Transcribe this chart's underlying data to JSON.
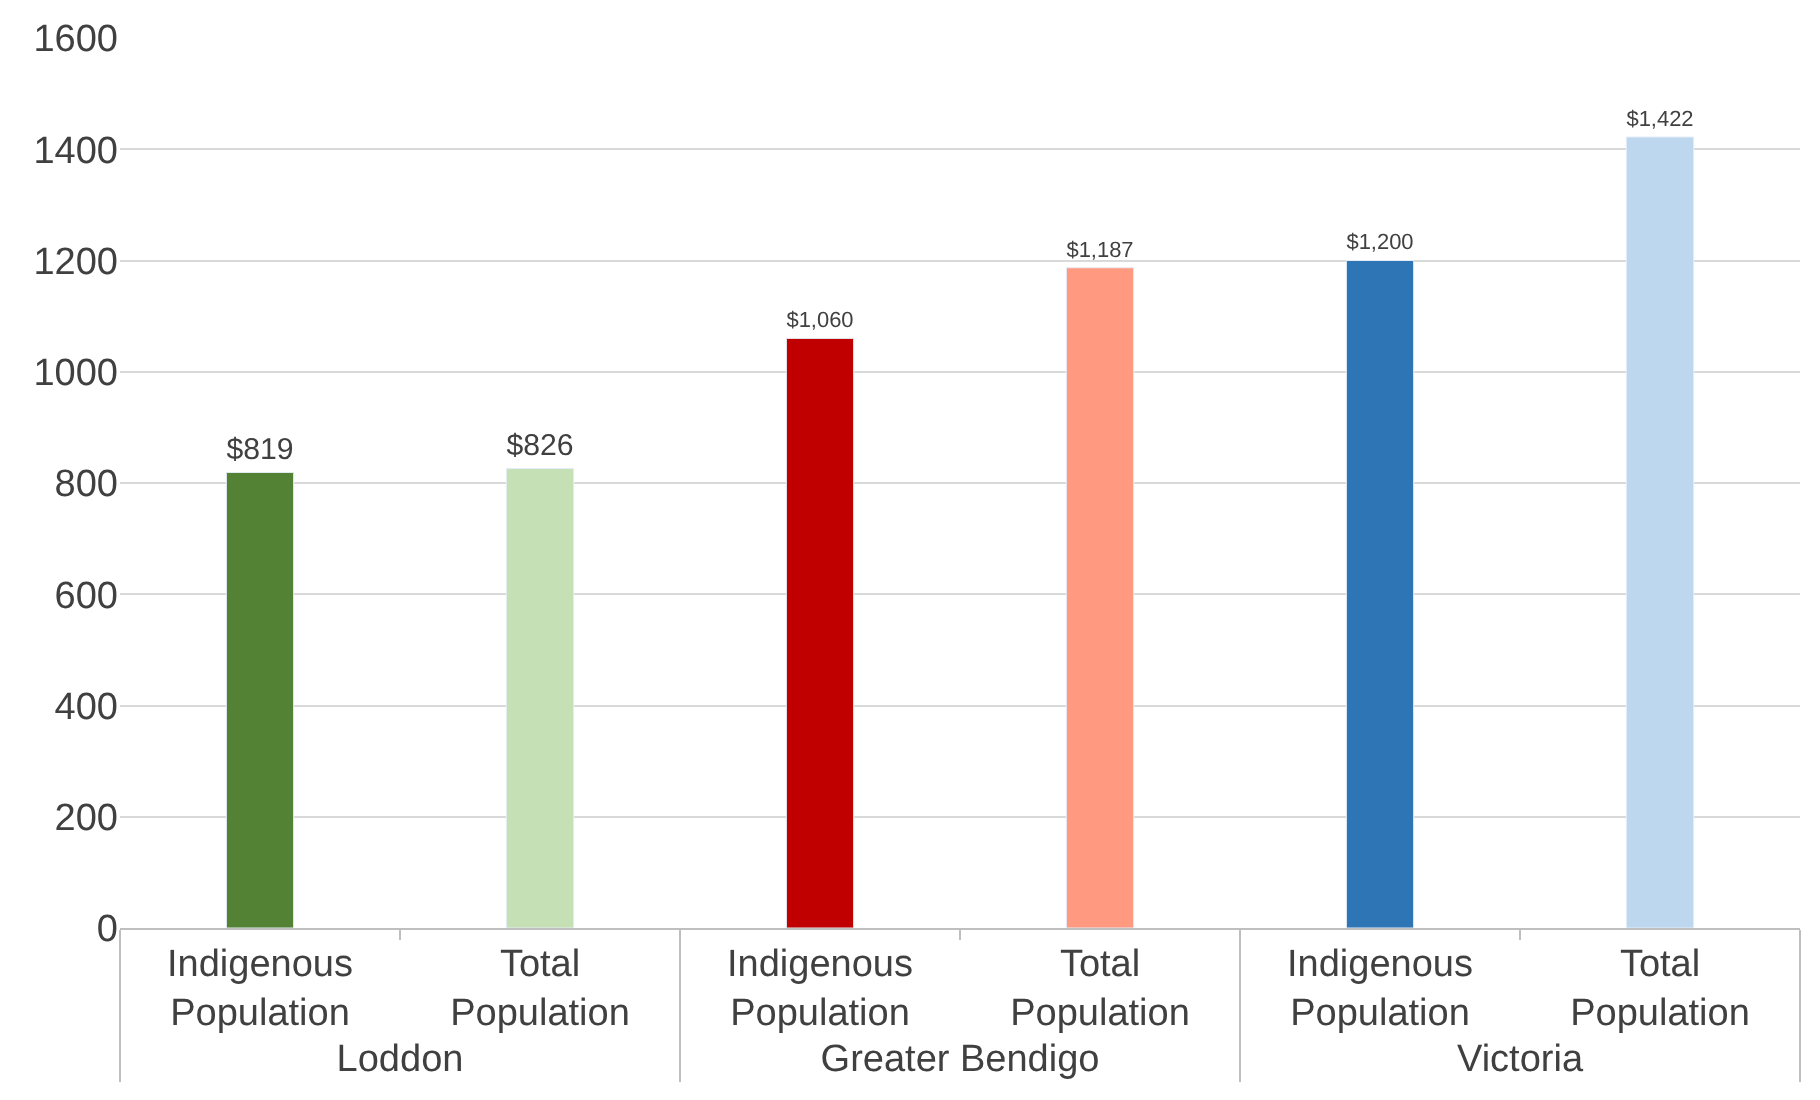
{
  "chart_data": {
    "type": "bar",
    "categories": [
      "Indigenous Population",
      "Total Population",
      "Indigenous Population",
      "Total Population",
      "Indigenous Population",
      "Total Population"
    ],
    "values": [
      819,
      826,
      1060,
      1187,
      1200,
      1422
    ],
    "colors": [
      "#548235",
      "#c5e0b4",
      "#c00000",
      "#ff9980",
      "#2e75b6",
      "#bdd7ee"
    ],
    "value_labels": [
      "$819",
      "$826",
      "$1,060",
      "$1,187",
      "$1,200",
      "$1,422"
    ],
    "annotations": [
      "Loddon",
      "Greater Bendigo",
      "Victoria"
    ],
    "ylim": [
      0,
      1600
    ],
    "yticks": [
      0,
      200,
      400,
      600,
      800,
      1000,
      1200,
      1400,
      1600
    ],
    "grid": "y",
    "legend": false
  }
}
